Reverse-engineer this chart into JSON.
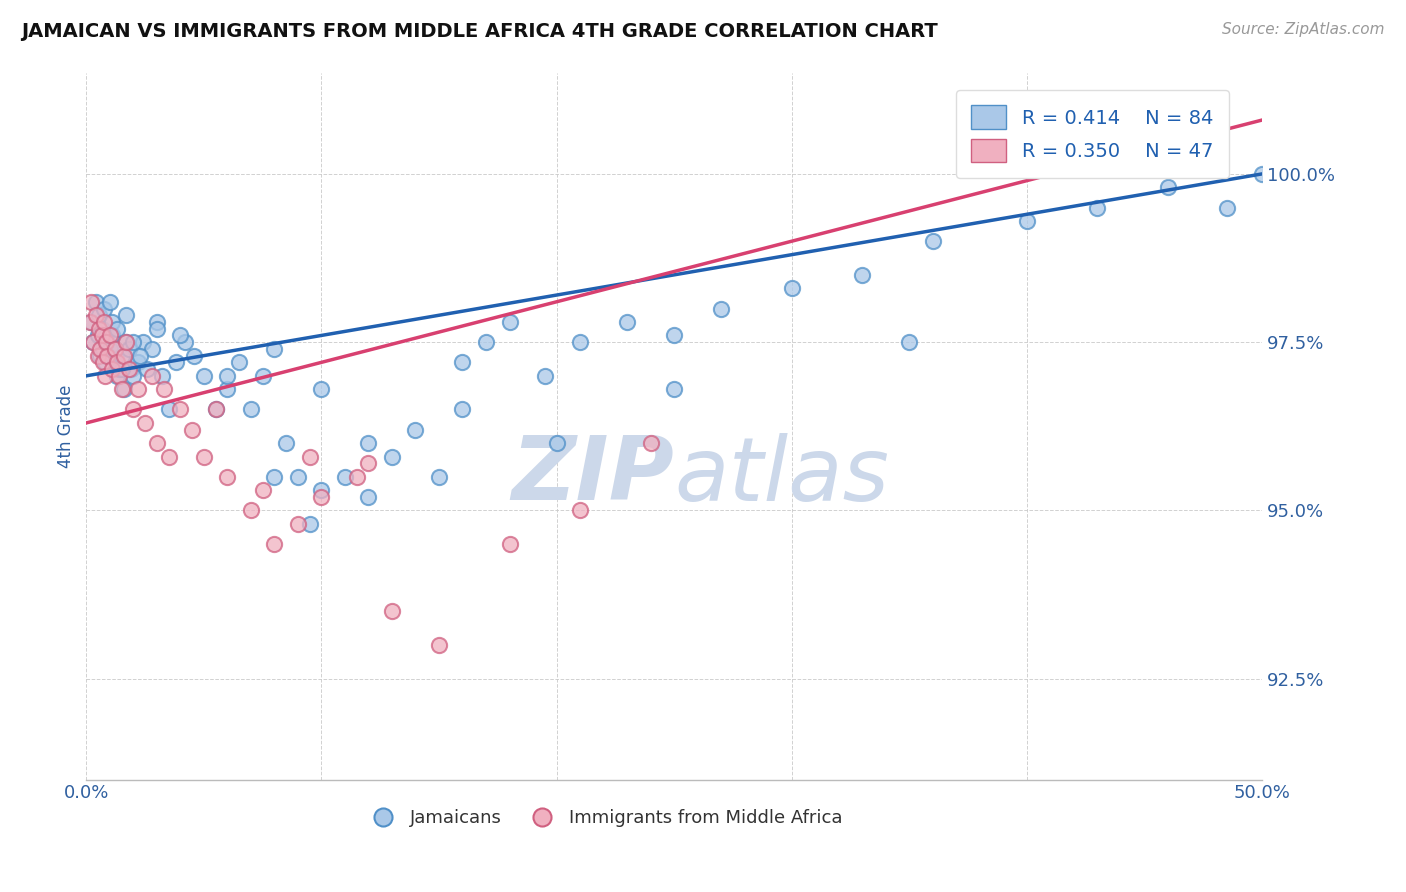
{
  "title": "JAMAICAN VS IMMIGRANTS FROM MIDDLE AFRICA 4TH GRADE CORRELATION CHART",
  "source": "Source: ZipAtlas.com",
  "ylabel": "4th Grade",
  "xlim_data": [
    0.0,
    50.0
  ],
  "ylim_data": [
    91.0,
    101.5
  ],
  "yticks": [
    92.5,
    95.0,
    97.5,
    100.0
  ],
  "ytick_labels": [
    "92.5%",
    "95.0%",
    "97.5%",
    "100.0%"
  ],
  "xtick_vals": [
    0,
    10,
    20,
    30,
    40,
    50
  ],
  "xtick_labels": [
    "0.0%",
    "",
    "",
    "",
    "",
    "50.0%"
  ],
  "legend_line1": "R = 0.414    N = 84",
  "legend_line2": "R = 0.350    N = 47",
  "blue_face": "#aac8e8",
  "blue_edge": "#5090c8",
  "pink_face": "#f0b0c0",
  "pink_edge": "#d06080",
  "blue_line_color": "#2060b0",
  "pink_line_color": "#d84070",
  "axis_label_color": "#3060a0",
  "tick_color": "#3060a0",
  "grid_color": "#cccccc",
  "watermark_color": "#ccd8ea",
  "blue_line_x0": 0,
  "blue_line_x1": 50,
  "blue_line_y0": 97.0,
  "blue_line_y1": 100.0,
  "pink_line_x0": 0,
  "pink_line_x1": 50,
  "pink_line_y0": 96.3,
  "pink_line_y1": 100.8,
  "blue_x": [
    0.2,
    0.3,
    0.4,
    0.5,
    0.55,
    0.6,
    0.65,
    0.7,
    0.75,
    0.8,
    0.85,
    0.9,
    0.95,
    1.0,
    1.1,
    1.2,
    1.3,
    1.4,
    1.5,
    1.6,
    1.7,
    1.8,
    1.9,
    2.0,
    2.2,
    2.4,
    2.6,
    2.8,
    3.0,
    3.2,
    3.5,
    3.8,
    4.2,
    4.6,
    5.0,
    5.5,
    6.0,
    6.5,
    7.0,
    7.5,
    8.0,
    8.5,
    9.0,
    9.5,
    10.0,
    11.0,
    12.0,
    13.0,
    14.0,
    15.0,
    16.0,
    17.0,
    18.0,
    19.5,
    21.0,
    23.0,
    25.0,
    27.0,
    30.0,
    33.0,
    36.0,
    40.0,
    43.0,
    46.0,
    48.5,
    50.0,
    1.0,
    1.1,
    1.2,
    1.3,
    1.5,
    1.7,
    2.0,
    2.3,
    3.0,
    4.0,
    6.0,
    8.0,
    10.0,
    12.0,
    16.0,
    20.0,
    25.0,
    35.0
  ],
  "blue_y": [
    97.8,
    97.5,
    98.1,
    97.6,
    97.9,
    97.3,
    97.7,
    97.4,
    98.0,
    97.2,
    97.6,
    97.5,
    97.3,
    97.4,
    97.6,
    97.2,
    97.0,
    97.1,
    97.3,
    96.8,
    97.5,
    97.4,
    97.1,
    97.0,
    97.2,
    97.5,
    97.1,
    97.4,
    97.8,
    97.0,
    96.5,
    97.2,
    97.5,
    97.3,
    97.0,
    96.5,
    96.8,
    97.2,
    96.5,
    97.0,
    95.5,
    96.0,
    95.5,
    94.8,
    95.3,
    95.5,
    96.0,
    95.8,
    96.2,
    95.5,
    97.2,
    97.5,
    97.8,
    97.0,
    97.5,
    97.8,
    97.6,
    98.0,
    98.3,
    98.5,
    99.0,
    99.3,
    99.5,
    99.8,
    99.5,
    100.0,
    98.1,
    97.8,
    97.4,
    97.7,
    97.1,
    97.9,
    97.5,
    97.3,
    97.7,
    97.6,
    97.0,
    97.4,
    96.8,
    95.2,
    96.5,
    96.0,
    96.8,
    97.5
  ],
  "pink_x": [
    0.15,
    0.2,
    0.3,
    0.4,
    0.5,
    0.55,
    0.6,
    0.65,
    0.7,
    0.75,
    0.8,
    0.85,
    0.9,
    1.0,
    1.1,
    1.2,
    1.3,
    1.4,
    1.5,
    1.6,
    1.7,
    1.8,
    2.0,
    2.2,
    2.5,
    3.0,
    3.5,
    4.0,
    4.5,
    5.0,
    5.5,
    6.0,
    7.0,
    8.0,
    9.0,
    10.0,
    11.5,
    13.0,
    15.0,
    18.0,
    21.0,
    24.0,
    7.5,
    12.0,
    2.8,
    3.3,
    9.5
  ],
  "pink_y": [
    97.8,
    98.1,
    97.5,
    97.9,
    97.3,
    97.7,
    97.4,
    97.6,
    97.2,
    97.8,
    97.0,
    97.5,
    97.3,
    97.6,
    97.1,
    97.4,
    97.2,
    97.0,
    96.8,
    97.3,
    97.5,
    97.1,
    96.5,
    96.8,
    96.3,
    96.0,
    95.8,
    96.5,
    96.2,
    95.8,
    96.5,
    95.5,
    95.0,
    94.5,
    94.8,
    95.2,
    95.5,
    93.5,
    93.0,
    94.5,
    95.0,
    96.0,
    95.3,
    95.7,
    97.0,
    96.8,
    95.8
  ]
}
